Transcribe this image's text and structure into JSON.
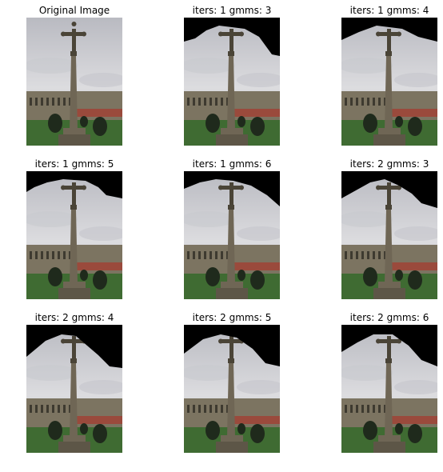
{
  "figure": {
    "panels": [
      {
        "title": "Original Image",
        "segmented": false
      },
      {
        "title": "iters: 1 gmms: 3",
        "segmented": true
      },
      {
        "title": "iters: 1 gmms: 4",
        "segmented": true
      },
      {
        "title": "iters: 1 gmms: 5",
        "segmented": true
      },
      {
        "title": "iters: 1 gmms: 6",
        "segmented": true
      },
      {
        "title": "iters: 2 gmms: 3",
        "segmented": true
      },
      {
        "title": "iters: 2 gmms: 4",
        "segmented": true
      },
      {
        "title": "iters: 2 gmms: 5",
        "segmented": true
      },
      {
        "title": "iters: 2 gmms: 6",
        "segmented": true
      }
    ]
  },
  "colors": {
    "background": "#ffffff",
    "mask": "#000000",
    "sky_light": "#dcdcdf",
    "sky_dark": "#b9bac1",
    "stone": "#6f6655",
    "stone_dark": "#4a4437",
    "building": "#7c7461",
    "roof": "#9a4a3c",
    "grass": "#3f6b32",
    "shrub": "#1f2a1c"
  }
}
